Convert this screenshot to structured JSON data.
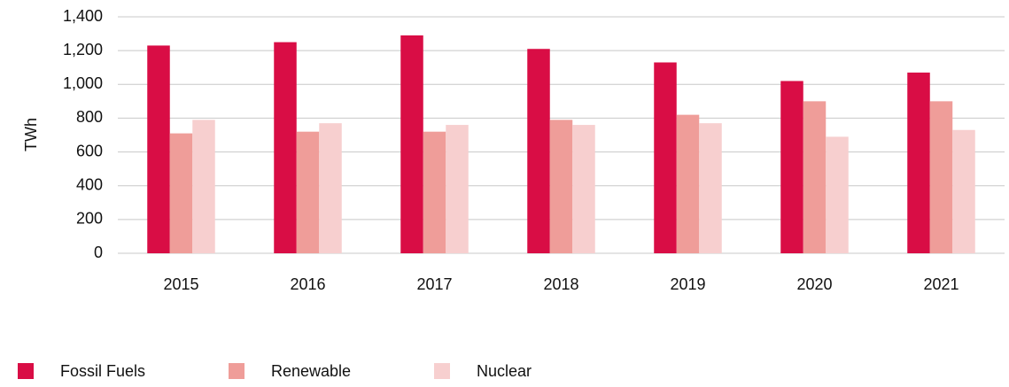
{
  "chart_data": {
    "type": "bar",
    "ylabel": "TWh",
    "categories": [
      "2015",
      "2016",
      "2017",
      "2018",
      "2019",
      "2020",
      "2021"
    ],
    "series": [
      {
        "name": "Fossil Fuels",
        "color": "#d90d45",
        "values": [
          1230,
          1250,
          1290,
          1210,
          1130,
          1020,
          1070
        ]
      },
      {
        "name": "Renewable",
        "color": "#ef9d99",
        "values": [
          710,
          720,
          720,
          790,
          820,
          900,
          900
        ]
      },
      {
        "name": "Nuclear",
        "color": "#f7cfcf",
        "values": [
          790,
          770,
          760,
          760,
          770,
          690,
          730
        ]
      }
    ],
    "ylim": [
      0,
      1400
    ],
    "yticks": [
      0,
      200,
      400,
      600,
      800,
      {
        "value": 1000,
        "label": "1,000"
      },
      {
        "value": 1200,
        "label": "1,200"
      },
      {
        "value": 1400,
        "label": "1,400"
      }
    ],
    "grid": true
  }
}
